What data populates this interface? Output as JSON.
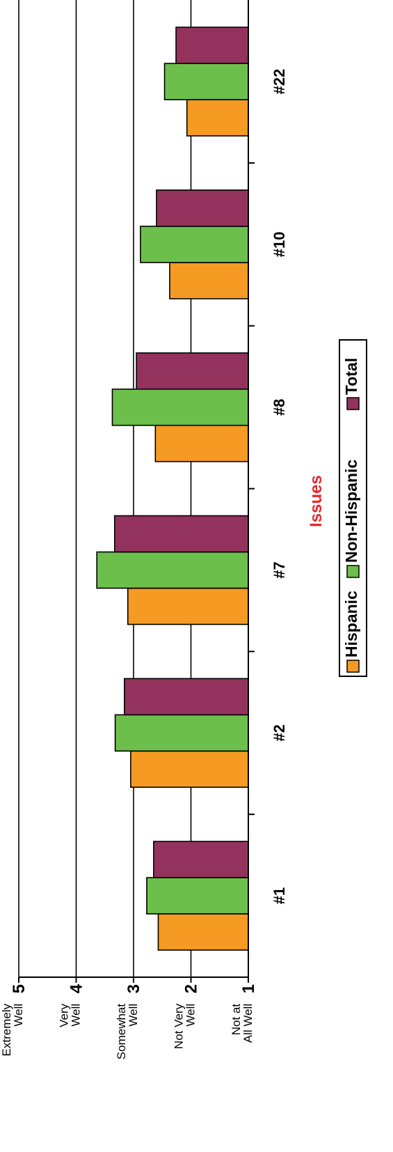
{
  "chart_data": {
    "type": "bar",
    "orientation": "vertical",
    "categories": [
      "#1",
      "#2",
      "#7",
      "#8",
      "#10",
      "#22"
    ],
    "series": [
      {
        "name": "Hispanic",
        "color": "#f59a23",
        "values": [
          2.57,
          3.05,
          3.1,
          2.62,
          2.37,
          2.07
        ]
      },
      {
        "name": "Non-Hispanic",
        "color": "#6dbf4b",
        "values": [
          2.77,
          3.32,
          3.64,
          3.37,
          2.88,
          2.46
        ]
      },
      {
        "name": "Total",
        "color": "#93335d",
        "values": [
          2.65,
          3.16,
          3.33,
          2.95,
          2.6,
          2.26
        ]
      }
    ],
    "y_ticks": [
      {
        "value": 1,
        "label": "1",
        "lines": [
          "Not at",
          "All Well"
        ]
      },
      {
        "value": 2,
        "label": "2",
        "lines": [
          "Not Very",
          "Well"
        ]
      },
      {
        "value": 3,
        "label": "3",
        "lines": [
          "Somewhat",
          "Well"
        ]
      },
      {
        "value": 4,
        "label": "4",
        "lines": [
          "Very",
          "Well"
        ]
      },
      {
        "value": 5,
        "label": "5",
        "lines": [
          "Extremely",
          "Well"
        ]
      }
    ],
    "ylim": [
      1,
      5
    ],
    "xlabel": "Issues",
    "xlabel_color": "#e8262b",
    "grid": true,
    "legend_position": "bottom"
  }
}
